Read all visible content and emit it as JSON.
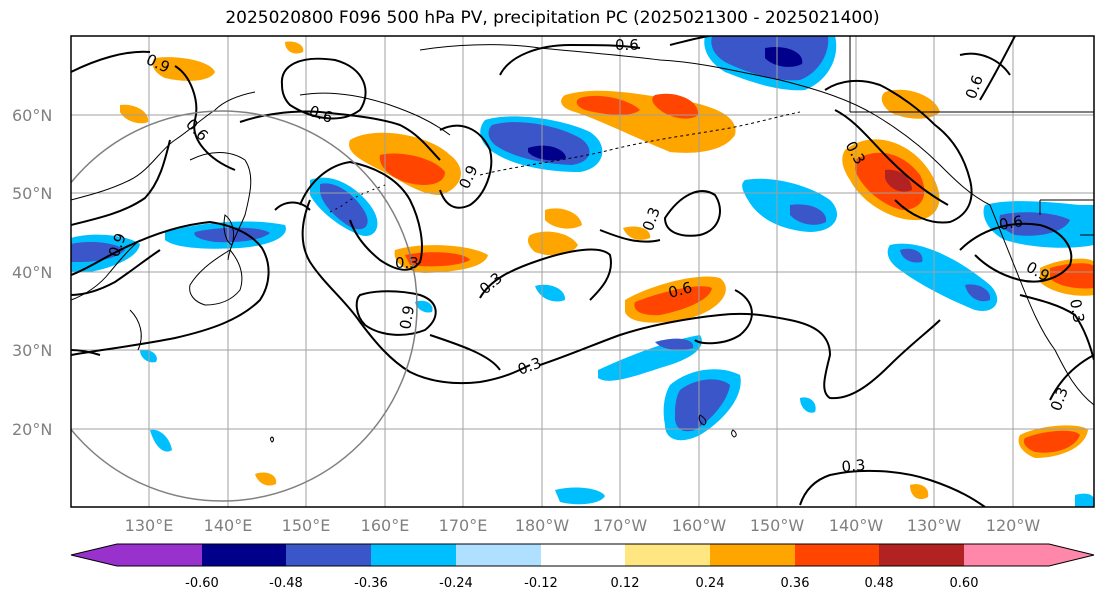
{
  "title": "2025020800 F096 500 hPa PV, precipitation PC (2025021300 - 2025021400)",
  "lat_labels": [
    "60°N",
    "50°N",
    "40°N",
    "30°N",
    "20°N"
  ],
  "lon_labels": [
    "130°E",
    "140°E",
    "150°E",
    "160°E",
    "170°E",
    "180°W",
    "170°W",
    "160°W",
    "150°W",
    "140°W",
    "130°W",
    "120°W"
  ],
  "contour_labels": [
    "0.6",
    "0.9",
    "0.6",
    "0.6",
    "0.3",
    "0.6",
    "0.9",
    "0.3",
    "0.9",
    "0.3",
    "0.9",
    "0.6",
    "0.3",
    "0.3",
    "0.3",
    "0.3",
    "0.9",
    "0.6",
    "0.3"
  ],
  "colorbar": {
    "ticks": [
      "-0.60",
      "-0.48",
      "-0.36",
      "-0.24",
      "-0.12",
      "0.12",
      "0.24",
      "0.36",
      "0.48",
      "0.60"
    ],
    "colors": [
      "#9932cc",
      "#00008b",
      "#3a56c9",
      "#00bfff",
      "#b0e0ff",
      "#ffffff",
      "#ffe680",
      "#ffa500",
      "#ff4500",
      "#b22222",
      "#ff88aa"
    ]
  },
  "colors": {
    "grid": "#a0a0a0",
    "coast": "#000000",
    "contour": "#000000",
    "circle": "#808080"
  }
}
